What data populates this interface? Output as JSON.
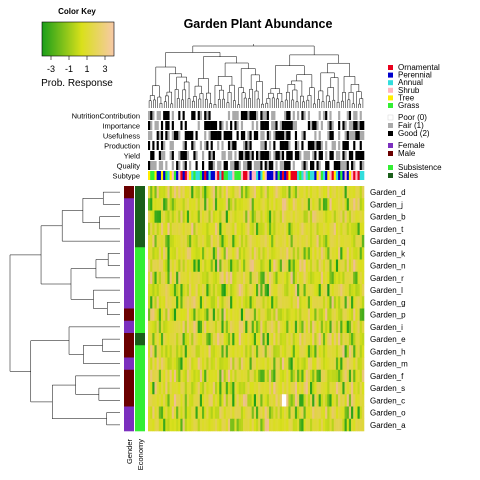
{
  "chart_data": {
    "type": "heatmap",
    "title": "Garden Plant Abundance",
    "color_key": {
      "title": "Color Key",
      "label": "Prob. Response",
      "ticks": [
        "-3",
        "-1",
        "1",
        "3"
      ],
      "range": [
        -4,
        4
      ],
      "colors": [
        "#1a9e1a",
        "#d9e01a",
        "#f7c9a8"
      ]
    },
    "rows": [
      "Garden_d",
      "Garden_j",
      "Garden_b",
      "Garden_t",
      "Garden_q",
      "Garden_k",
      "Garden_n",
      "Garden_r",
      "Garden_l",
      "Garden_g",
      "Garden_p",
      "Garden_i",
      "Garden_e",
      "Garden_h",
      "Garden_m",
      "Garden_f",
      "Garden_s",
      "Garden_c",
      "Garden_o",
      "Garden_a"
    ],
    "row_annotations": {
      "labels": [
        "Gender",
        "Economy"
      ],
      "gender": [
        "Male",
        "Female",
        "Female",
        "Female",
        "Female",
        "Female",
        "Female",
        "Female",
        "Female",
        "Female",
        "Male",
        "Female",
        "Male",
        "Male",
        "Female",
        "Male",
        "Male",
        "Male",
        "Female",
        "Female"
      ],
      "economy": [
        "Sales",
        "Sales",
        "Sales",
        "Sales",
        "Sales",
        "Subsistence",
        "Subsistence",
        "Subsistence",
        "Subsistence",
        "Subsistence",
        "Subsistence",
        "Subsistence",
        "Sales",
        "Subsistence",
        "Subsistence",
        "Subsistence",
        "Subsistence",
        "Subsistence",
        "Subsistence",
        "Subsistence"
      ]
    },
    "column_annotations": {
      "labels": [
        "NutritionContribution",
        "Importance",
        "Usefulness",
        "Production",
        "Yield",
        "Quality",
        "Subtype"
      ]
    },
    "legends": {
      "subtype": [
        {
          "label": "Ornamental",
          "color": "#e8001c"
        },
        {
          "label": "Perennial",
          "color": "#0000cc"
        },
        {
          "label": "Annual",
          "color": "#33dddd"
        },
        {
          "label": "Shrub",
          "color": "#ffb6c1"
        },
        {
          "label": "Tree",
          "color": "#ffee00"
        },
        {
          "label": "Grass",
          "color": "#33ee33"
        }
      ],
      "rating": [
        {
          "label": "Poor (0)",
          "color": "#ffffff"
        },
        {
          "label": "Fair (1)",
          "color": "#aaaaaa"
        },
        {
          "label": "Good (2)",
          "color": "#000000"
        }
      ],
      "gender": [
        {
          "label": "Female",
          "color": "#7b2fbe"
        },
        {
          "label": "Male",
          "color": "#6b0000"
        }
      ],
      "economy": [
        {
          "label": "Subsistence",
          "color": "#33ee33"
        },
        {
          "label": "Sales",
          "color": "#1a5e1a"
        }
      ]
    },
    "n_columns": 100
  }
}
